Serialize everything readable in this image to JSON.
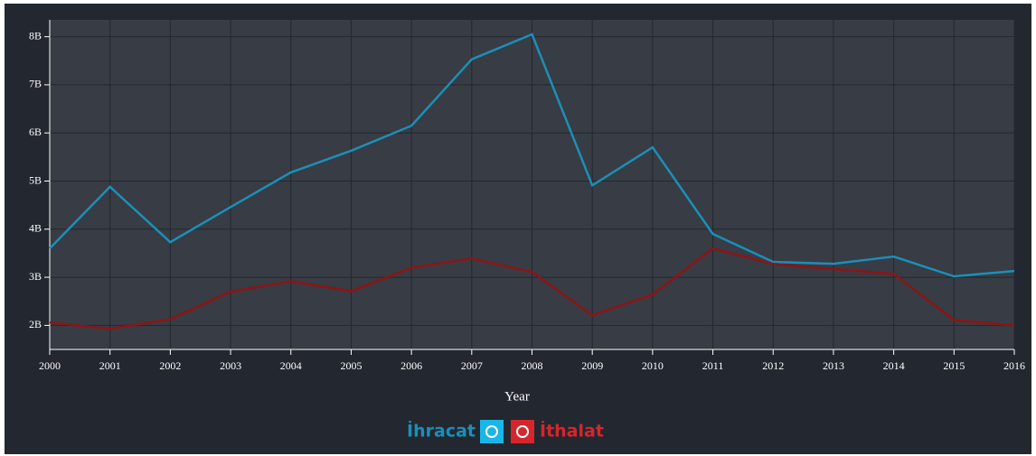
{
  "chart_data": {
    "type": "line",
    "x_label": "Year",
    "x": [
      2000,
      2001,
      2002,
      2003,
      2004,
      2005,
      2006,
      2007,
      2008,
      2009,
      2010,
      2011,
      2012,
      2013,
      2014,
      2015,
      2016
    ],
    "xlim": [
      2000,
      2016
    ],
    "xticks": [
      2000,
      2001,
      2002,
      2003,
      2004,
      2005,
      2006,
      2007,
      2008,
      2009,
      2010,
      2011,
      2012,
      2013,
      2014,
      2015,
      2016
    ],
    "ylim": [
      1.5,
      8.35
    ],
    "yticks": [
      {
        "value": 2,
        "label": "2B"
      },
      {
        "value": 3,
        "label": "3B"
      },
      {
        "value": 4,
        "label": "4B"
      },
      {
        "value": 5,
        "label": "5B"
      },
      {
        "value": 6,
        "label": "6B"
      },
      {
        "value": 7,
        "label": "7B"
      },
      {
        "value": 8,
        "label": "8B"
      }
    ],
    "grid": true,
    "series": [
      {
        "name": "İhracat",
        "color": "#1b8fb9",
        "values": [
          3.6,
          4.88,
          3.73,
          4.46,
          5.18,
          5.63,
          6.15,
          7.53,
          8.05,
          4.91,
          5.7,
          3.9,
          3.32,
          3.28,
          3.43,
          3.02,
          3.13
        ]
      },
      {
        "name": "İthalat",
        "color": "#8e1414",
        "values": [
          2.06,
          1.93,
          2.13,
          2.7,
          2.92,
          2.71,
          3.2,
          3.39,
          3.11,
          2.21,
          2.64,
          3.6,
          3.28,
          3.17,
          3.07,
          2.11,
          2.0
        ]
      }
    ]
  }
}
